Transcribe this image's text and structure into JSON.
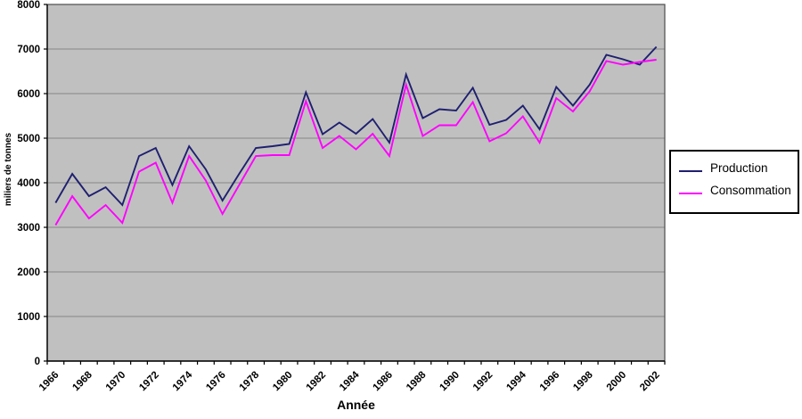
{
  "chart_data": {
    "type": "line",
    "title": "",
    "xlabel": "Année",
    "ylabel": "miliers de tonnes",
    "x": [
      1966,
      1967,
      1968,
      1969,
      1970,
      1971,
      1972,
      1973,
      1974,
      1975,
      1976,
      1977,
      1978,
      1979,
      1980,
      1981,
      1982,
      1983,
      1984,
      1985,
      1986,
      1987,
      1988,
      1989,
      1990,
      1991,
      1992,
      1993,
      1994,
      1995,
      1996,
      1997,
      1998,
      1999,
      2000,
      2001,
      2002
    ],
    "x_tick_labels": [
      1966,
      1968,
      1970,
      1972,
      1974,
      1976,
      1978,
      1980,
      1982,
      1984,
      1986,
      1988,
      1990,
      1992,
      1994,
      1996,
      1998,
      2000,
      2002
    ],
    "x_label_every": 2,
    "ylim": [
      0,
      8000
    ],
    "y_ticks": [
      0,
      1000,
      2000,
      3000,
      4000,
      5000,
      6000,
      7000,
      8000
    ],
    "grid": true,
    "legend_position": "right",
    "series": [
      {
        "name": "Production",
        "color": "#1F1F70",
        "values": [
          3550,
          4200,
          3700,
          3900,
          3500,
          4600,
          4780,
          3950,
          4820,
          4300,
          3600,
          4200,
          4780,
          4820,
          4870,
          6030,
          5090,
          5350,
          5100,
          5430,
          4900,
          6430,
          5450,
          5650,
          5620,
          6130,
          5300,
          5410,
          5730,
          5200,
          6150,
          5730,
          6200,
          6870,
          6770,
          6650,
          7050
        ]
      },
      {
        "name": "Consommation",
        "color": "#FF00FF",
        "values": [
          3050,
          3700,
          3200,
          3500,
          3100,
          4250,
          4450,
          3550,
          4600,
          4050,
          3300,
          3950,
          4600,
          4620,
          4620,
          5830,
          4780,
          5050,
          4750,
          5100,
          4600,
          6200,
          5050,
          5290,
          5290,
          5810,
          4930,
          5110,
          5490,
          4900,
          5900,
          5600,
          6050,
          6730,
          6650,
          6710,
          6760
        ]
      }
    ],
    "colors": {
      "plot_bg": "#C0C0C0",
      "gridline": "#868686",
      "plot_border": "#4D4D4D",
      "axis": "#000000"
    }
  }
}
